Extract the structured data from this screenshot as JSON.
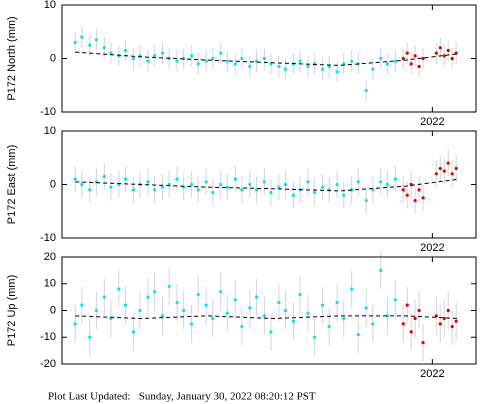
{
  "chart_data": [
    {
      "type": "scatter",
      "ylabel": "P172 North (mm)",
      "xlim": [
        2019.2,
        2022.33
      ],
      "xticks": [
        2022
      ],
      "ylim": [
        -10,
        10
      ],
      "yticks": [
        -10,
        0,
        10
      ],
      "error_color": "#d4d4d4",
      "series": [
        {
          "color": "#00e5ee",
          "error": 2,
          "x": [
            2019.3,
            2019.35,
            2019.41,
            2019.46,
            2019.52,
            2019.57,
            2019.63,
            2019.68,
            2019.74,
            2019.79,
            2019.85,
            2019.9,
            2019.96,
            2020.01,
            2020.07,
            2020.12,
            2020.18,
            2020.23,
            2020.29,
            2020.34,
            2020.4,
            2020.45,
            2020.51,
            2020.56,
            2020.62,
            2020.67,
            2020.73,
            2020.78,
            2020.84,
            2020.89,
            2020.95,
            2021.0,
            2021.06,
            2021.11,
            2021.17,
            2021.22,
            2021.28,
            2021.33,
            2021.39,
            2021.44,
            2021.5,
            2021.55,
            2021.61,
            2021.66,
            2021.72
          ],
          "values": [
            3,
            4,
            2.5,
            3.5,
            2,
            1,
            0.5,
            1.5,
            0,
            0.5,
            -0.5,
            0.5,
            1,
            0,
            -0.5,
            0,
            0.5,
            -1,
            -0.5,
            0,
            1,
            -0.5,
            -1,
            0,
            -1.5,
            -0.5,
            0,
            -1,
            -1.5,
            -2,
            -1,
            -0.5,
            -1.5,
            -1,
            -2,
            -1.5,
            -2.5,
            -1,
            -0.5,
            -1,
            -6,
            -2,
            0,
            -1,
            -0.5
          ]
        },
        {
          "color": "#e00000",
          "error": 2,
          "x": [
            2021.78,
            2021.81,
            2021.84,
            2021.87,
            2021.9,
            2021.93,
            2022.03,
            2022.06,
            2022.09,
            2022.12,
            2022.15,
            2022.18
          ],
          "values": [
            0,
            1,
            -1,
            0.5,
            -1.5,
            0,
            1,
            2,
            0.5,
            1.5,
            0,
            1
          ]
        }
      ],
      "trend": {
        "color": "#000000",
        "x": [
          2019.3,
          2019.8,
          2020.3,
          2020.8,
          2021.3,
          2021.8,
          2022.2
        ],
        "values": [
          1.2,
          0.3,
          -0.3,
          -0.8,
          -1.3,
          -0.3,
          0.9
        ]
      }
    },
    {
      "type": "scatter",
      "ylabel": "P172 East (mm)",
      "xlim": [
        2019.2,
        2022.33
      ],
      "xticks": [
        2022
      ],
      "ylim": [
        -10,
        10
      ],
      "yticks": [
        -10,
        0,
        10
      ],
      "error_color": "#d4d4d4",
      "series": [
        {
          "color": "#00e5ee",
          "error": 2.5,
          "x": [
            2019.3,
            2019.35,
            2019.41,
            2019.46,
            2019.52,
            2019.57,
            2019.63,
            2019.68,
            2019.74,
            2019.79,
            2019.85,
            2019.9,
            2019.96,
            2020.01,
            2020.07,
            2020.12,
            2020.18,
            2020.23,
            2020.29,
            2020.34,
            2020.4,
            2020.45,
            2020.51,
            2020.56,
            2020.62,
            2020.67,
            2020.73,
            2020.78,
            2020.84,
            2020.89,
            2020.95,
            2021.0,
            2021.06,
            2021.11,
            2021.17,
            2021.22,
            2021.28,
            2021.33,
            2021.39,
            2021.44,
            2021.5,
            2021.55,
            2021.61,
            2021.66,
            2021.72
          ],
          "values": [
            1,
            0,
            -1,
            0.5,
            1.5,
            -0.5,
            0,
            1,
            -1,
            0,
            0.5,
            -1,
            -0.5,
            0,
            1,
            -0.5,
            0,
            -1,
            0.5,
            -1.5,
            0,
            -0.5,
            1,
            -1,
            0,
            -1,
            0.5,
            -1.5,
            -0.5,
            0,
            -2,
            -1,
            0.5,
            -1.5,
            -0.5,
            -1,
            0,
            -2,
            -1,
            0.5,
            -3,
            -1,
            0.5,
            0,
            1
          ]
        },
        {
          "color": "#e00000",
          "error": 2.5,
          "x": [
            2021.78,
            2021.81,
            2021.84,
            2021.87,
            2021.9,
            2021.93,
            2022.03,
            2022.06,
            2022.09,
            2022.12,
            2022.15,
            2022.18
          ],
          "values": [
            -1,
            -2,
            0,
            -3,
            -1,
            -2.5,
            2,
            3,
            2.5,
            4,
            2,
            3
          ]
        }
      ],
      "trend": {
        "color": "#000000",
        "x": [
          2019.3,
          2019.8,
          2020.3,
          2020.8,
          2021.3,
          2021.8,
          2022.2
        ],
        "values": [
          0.5,
          0,
          -0.5,
          -0.8,
          -1.2,
          -0.3,
          1.0
        ]
      }
    },
    {
      "type": "scatter",
      "ylabel": "P172 Up (mm)",
      "xlim": [
        2019.2,
        2022.33
      ],
      "xticks": [
        2022
      ],
      "ylim": [
        -20,
        20
      ],
      "yticks": [
        -20,
        -10,
        0,
        10,
        20
      ],
      "error_color": "#d4d4d4",
      "series": [
        {
          "color": "#00e5ee",
          "error": 7,
          "x": [
            2019.3,
            2019.35,
            2019.41,
            2019.46,
            2019.52,
            2019.57,
            2019.63,
            2019.68,
            2019.74,
            2019.79,
            2019.85,
            2019.9,
            2019.96,
            2020.01,
            2020.07,
            2020.12,
            2020.18,
            2020.23,
            2020.29,
            2020.34,
            2020.4,
            2020.45,
            2020.51,
            2020.56,
            2020.62,
            2020.67,
            2020.73,
            2020.78,
            2020.84,
            2020.89,
            2020.95,
            2021.0,
            2021.06,
            2021.11,
            2021.17,
            2021.22,
            2021.28,
            2021.33,
            2021.39,
            2021.44,
            2021.5,
            2021.55,
            2021.61,
            2021.66,
            2021.72
          ],
          "values": [
            -5,
            2,
            -10,
            0,
            5,
            -3,
            8,
            2,
            -8,
            0,
            5,
            7,
            -2,
            9,
            3,
            0,
            -5,
            6,
            2,
            -3,
            7,
            -1,
            4,
            -6,
            1,
            5,
            -2,
            -8,
            3,
            0,
            -4,
            6,
            -1,
            -10,
            2,
            -6,
            3,
            -3,
            8,
            -9,
            1,
            -5,
            15,
            -2,
            4
          ]
        },
        {
          "color": "#e00000",
          "error": 7,
          "x": [
            2021.78,
            2021.81,
            2021.84,
            2021.87,
            2021.9,
            2021.93,
            2022.03,
            2022.06,
            2022.09,
            2022.12,
            2022.15,
            2022.18
          ],
          "values": [
            -5,
            2,
            -8,
            -3,
            0,
            -12,
            -2,
            -5,
            -3,
            0,
            -6,
            -4
          ]
        }
      ],
      "trend": {
        "color": "#000000",
        "x": [
          2019.3,
          2019.8,
          2020.3,
          2020.8,
          2021.3,
          2021.8,
          2022.2
        ],
        "values": [
          -2,
          -3,
          -2,
          -3,
          -2,
          -2,
          -3
        ]
      }
    }
  ],
  "footer": "Plot Last Updated:   Sunday, January 30, 2022 08:20:12 PST"
}
